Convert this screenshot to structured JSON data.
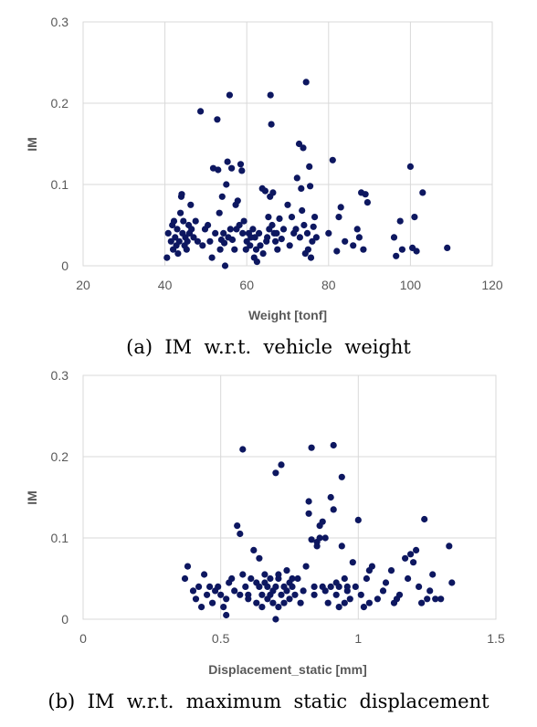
{
  "chart_data": [
    {
      "type": "scatter",
      "xlabel": "Weight [tonf]",
      "ylabel": "IM",
      "xlim": [
        20,
        120
      ],
      "ylim": [
        0,
        0.3
      ],
      "xticks": [
        "20",
        "40",
        "60",
        "80",
        "100",
        "120"
      ],
      "yticks": [
        "0",
        "0.1",
        "0.2",
        "0.3"
      ],
      "grid": true,
      "caption": "(a)  IM  w.r.t.  vehicle  weight",
      "points": [
        [
          40.5,
          0.01
        ],
        [
          40.8,
          0.04
        ],
        [
          41.5,
          0.03
        ],
        [
          41.8,
          0.05
        ],
        [
          42.0,
          0.02
        ],
        [
          42.2,
          0.055
        ],
        [
          42.5,
          0.035
        ],
        [
          42.8,
          0.025
        ],
        [
          43.0,
          0.045
        ],
        [
          43.2,
          0.015
        ],
        [
          43.5,
          0.03
        ],
        [
          43.8,
          0.065
        ],
        [
          44.0,
          0.085
        ],
        [
          44.1,
          0.088
        ],
        [
          44.3,
          0.04
        ],
        [
          44.5,
          0.055
        ],
        [
          44.8,
          0.025
        ],
        [
          45.0,
          0.035
        ],
        [
          45.3,
          0.02
        ],
        [
          45.5,
          0.03
        ],
        [
          45.8,
          0.05
        ],
        [
          46.0,
          0.04
        ],
        [
          46.3,
          0.075
        ],
        [
          46.5,
          0.045
        ],
        [
          47.0,
          0.035
        ],
        [
          47.5,
          0.055
        ],
        [
          48.0,
          0.03
        ],
        [
          48.7,
          0.19
        ],
        [
          49.2,
          0.025
        ],
        [
          49.8,
          0.045
        ],
        [
          50.5,
          0.05
        ],
        [
          51.0,
          0.03
        ],
        [
          51.5,
          0.01
        ],
        [
          51.8,
          0.12
        ],
        [
          52.3,
          0.04
        ],
        [
          52.8,
          0.18
        ],
        [
          53.0,
          0.118
        ],
        [
          53.3,
          0.065
        ],
        [
          53.5,
          0.02
        ],
        [
          53.8,
          0.032
        ],
        [
          54.0,
          0.085
        ],
        [
          54.3,
          0.04
        ],
        [
          54.5,
          0.028
        ],
        [
          54.7,
          0.0
        ],
        [
          55.0,
          0.1
        ],
        [
          55.3,
          0.128
        ],
        [
          55.5,
          0.035
        ],
        [
          55.8,
          0.21
        ],
        [
          56.0,
          0.045
        ],
        [
          56.3,
          0.12
        ],
        [
          56.5,
          0.032
        ],
        [
          57.0,
          0.02
        ],
        [
          57.3,
          0.075
        ],
        [
          57.5,
          0.045
        ],
        [
          57.8,
          0.08
        ],
        [
          58.2,
          0.05
        ],
        [
          58.5,
          0.125
        ],
        [
          58.8,
          0.117
        ],
        [
          59.0,
          0.04
        ],
        [
          59.3,
          0.055
        ],
        [
          59.8,
          0.02
        ],
        [
          60.0,
          0.03
        ],
        [
          60.5,
          0.04
        ],
        [
          60.8,
          0.025
        ],
        [
          61.0,
          0.035
        ],
        [
          61.5,
          0.045
        ],
        [
          61.8,
          0.01
        ],
        [
          62.0,
          0.035
        ],
        [
          62.3,
          0.02
        ],
        [
          62.5,
          0.005
        ],
        [
          63.0,
          0.04
        ],
        [
          63.3,
          0.025
        ],
        [
          63.8,
          0.095
        ],
        [
          64.0,
          0.015
        ],
        [
          64.5,
          0.092
        ],
        [
          64.8,
          0.03
        ],
        [
          65.0,
          0.035
        ],
        [
          65.3,
          0.06
        ],
        [
          65.5,
          0.045
        ],
        [
          65.7,
          0.085
        ],
        [
          65.8,
          0.21
        ],
        [
          66.0,
          0.174
        ],
        [
          66.2,
          0.05
        ],
        [
          66.4,
          0.09
        ],
        [
          66.7,
          0.04
        ],
        [
          67.0,
          0.03
        ],
        [
          67.3,
          0.04
        ],
        [
          67.5,
          0.02
        ],
        [
          68.0,
          0.058
        ],
        [
          68.5,
          0.033
        ],
        [
          69.0,
          0.045
        ],
        [
          70.0,
          0.075
        ],
        [
          70.5,
          0.025
        ],
        [
          71.0,
          0.06
        ],
        [
          71.5,
          0.04
        ],
        [
          72.0,
          0.045
        ],
        [
          72.3,
          0.108
        ],
        [
          72.8,
          0.15
        ],
        [
          73.0,
          0.035
        ],
        [
          73.3,
          0.095
        ],
        [
          73.5,
          0.068
        ],
        [
          73.8,
          0.145
        ],
        [
          74.0,
          0.05
        ],
        [
          74.3,
          0.015
        ],
        [
          74.5,
          0.226
        ],
        [
          74.8,
          0.04
        ],
        [
          75.0,
          0.02
        ],
        [
          75.3,
          0.122
        ],
        [
          75.5,
          0.098
        ],
        [
          75.7,
          0.01
        ],
        [
          76.0,
          0.03
        ],
        [
          76.3,
          0.048
        ],
        [
          76.6,
          0.06
        ],
        [
          77.0,
          0.035
        ],
        [
          80.0,
          0.04
        ],
        [
          81.0,
          0.13
        ],
        [
          82.0,
          0.018
        ],
        [
          82.5,
          0.06
        ],
        [
          83.0,
          0.072
        ],
        [
          84.0,
          0.03
        ],
        [
          86.0,
          0.025
        ],
        [
          87.0,
          0.045
        ],
        [
          87.5,
          0.035
        ],
        [
          88.0,
          0.09
        ],
        [
          88.5,
          0.02
        ],
        [
          89.0,
          0.088
        ],
        [
          89.5,
          0.078
        ],
        [
          96.0,
          0.035
        ],
        [
          96.5,
          0.012
        ],
        [
          97.5,
          0.055
        ],
        [
          98.0,
          0.02
        ],
        [
          100.0,
          0.122
        ],
        [
          100.5,
          0.022
        ],
        [
          101.0,
          0.06
        ],
        [
          101.5,
          0.018
        ],
        [
          103.0,
          0.09
        ],
        [
          109.0,
          0.022
        ]
      ]
    },
    {
      "type": "scatter",
      "xlabel": "Displacement_static [mm]",
      "ylabel": "IM",
      "xlim": [
        0,
        1.5
      ],
      "ylim": [
        0,
        0.3
      ],
      "xticks": [
        "0",
        "0.5",
        "1",
        "1.5"
      ],
      "yticks": [
        "0",
        "0.1",
        "0.2",
        "0.3"
      ],
      "grid": true,
      "caption": "(b)  IM  w.r.t.  maximum  static  displacement",
      "points": [
        [
          0.37,
          0.05
        ],
        [
          0.38,
          0.065
        ],
        [
          0.4,
          0.035
        ],
        [
          0.41,
          0.025
        ],
        [
          0.42,
          0.04
        ],
        [
          0.43,
          0.015
        ],
        [
          0.44,
          0.055
        ],
        [
          0.45,
          0.03
        ],
        [
          0.46,
          0.04
        ],
        [
          0.47,
          0.02
        ],
        [
          0.48,
          0.035
        ],
        [
          0.49,
          0.04
        ],
        [
          0.5,
          0.03
        ],
        [
          0.51,
          0.015
        ],
        [
          0.52,
          0.005
        ],
        [
          0.52,
          0.025
        ],
        [
          0.53,
          0.045
        ],
        [
          0.54,
          0.05
        ],
        [
          0.55,
          0.035
        ],
        [
          0.56,
          0.115
        ],
        [
          0.57,
          0.03
        ],
        [
          0.57,
          0.105
        ],
        [
          0.58,
          0.055
        ],
        [
          0.58,
          0.209
        ],
        [
          0.59,
          0.04
        ],
        [
          0.6,
          0.03
        ],
        [
          0.6,
          0.025
        ],
        [
          0.61,
          0.05
        ],
        [
          0.62,
          0.085
        ],
        [
          0.63,
          0.045
        ],
        [
          0.63,
          0.02
        ],
        [
          0.64,
          0.04
        ],
        [
          0.64,
          0.075
        ],
        [
          0.65,
          0.03
        ],
        [
          0.65,
          0.015
        ],
        [
          0.66,
          0.045
        ],
        [
          0.66,
          0.055
        ],
        [
          0.67,
          0.04
        ],
        [
          0.67,
          0.025
        ],
        [
          0.68,
          0.03
        ],
        [
          0.68,
          0.05
        ],
        [
          0.69,
          0.035
        ],
        [
          0.69,
          0.02
        ],
        [
          0.7,
          0.04
        ],
        [
          0.7,
          0.18
        ],
        [
          0.7,
          0.0
        ],
        [
          0.71,
          0.015
        ],
        [
          0.71,
          0.05
        ],
        [
          0.71,
          0.055
        ],
        [
          0.72,
          0.19
        ],
        [
          0.72,
          0.03
        ],
        [
          0.73,
          0.04
        ],
        [
          0.73,
          0.02
        ],
        [
          0.74,
          0.06
        ],
        [
          0.74,
          0.035
        ],
        [
          0.75,
          0.045
        ],
        [
          0.75,
          0.025
        ],
        [
          0.76,
          0.04
        ],
        [
          0.76,
          0.05
        ],
        [
          0.77,
          0.03
        ],
        [
          0.78,
          0.05
        ],
        [
          0.79,
          0.02
        ],
        [
          0.8,
          0.035
        ],
        [
          0.81,
          0.065
        ],
        [
          0.82,
          0.145
        ],
        [
          0.82,
          0.13
        ],
        [
          0.83,
          0.098
        ],
        [
          0.83,
          0.211
        ],
        [
          0.84,
          0.03
        ],
        [
          0.84,
          0.04
        ],
        [
          0.85,
          0.095
        ],
        [
          0.85,
          0.09
        ],
        [
          0.86,
          0.1
        ],
        [
          0.86,
          0.115
        ],
        [
          0.87,
          0.12
        ],
        [
          0.87,
          0.04
        ],
        [
          0.88,
          0.035
        ],
        [
          0.88,
          0.1
        ],
        [
          0.89,
          0.02
        ],
        [
          0.9,
          0.04
        ],
        [
          0.9,
          0.15
        ],
        [
          0.91,
          0.214
        ],
        [
          0.91,
          0.135
        ],
        [
          0.92,
          0.03
        ],
        [
          0.92,
          0.045
        ],
        [
          0.93,
          0.015
        ],
        [
          0.93,
          0.04
        ],
        [
          0.94,
          0.175
        ],
        [
          0.94,
          0.09
        ],
        [
          0.95,
          0.02
        ],
        [
          0.95,
          0.05
        ],
        [
          0.96,
          0.035
        ],
        [
          0.96,
          0.04
        ],
        [
          0.97,
          0.025
        ],
        [
          0.98,
          0.07
        ],
        [
          0.99,
          0.04
        ],
        [
          1.0,
          0.122
        ],
        [
          1.01,
          0.03
        ],
        [
          1.02,
          0.015
        ],
        [
          1.03,
          0.05
        ],
        [
          1.04,
          0.02
        ],
        [
          1.04,
          0.06
        ],
        [
          1.05,
          0.065
        ],
        [
          1.07,
          0.025
        ],
        [
          1.09,
          0.035
        ],
        [
          1.1,
          0.045
        ],
        [
          1.12,
          0.06
        ],
        [
          1.13,
          0.02
        ],
        [
          1.14,
          0.025
        ],
        [
          1.15,
          0.03
        ],
        [
          1.17,
          0.075
        ],
        [
          1.18,
          0.05
        ],
        [
          1.19,
          0.08
        ],
        [
          1.2,
          0.07
        ],
        [
          1.21,
          0.085
        ],
        [
          1.22,
          0.04
        ],
        [
          1.23,
          0.02
        ],
        [
          1.24,
          0.123
        ],
        [
          1.25,
          0.025
        ],
        [
          1.26,
          0.035
        ],
        [
          1.27,
          0.055
        ],
        [
          1.28,
          0.025
        ],
        [
          1.3,
          0.025
        ],
        [
          1.33,
          0.09
        ],
        [
          1.34,
          0.045
        ]
      ]
    }
  ]
}
